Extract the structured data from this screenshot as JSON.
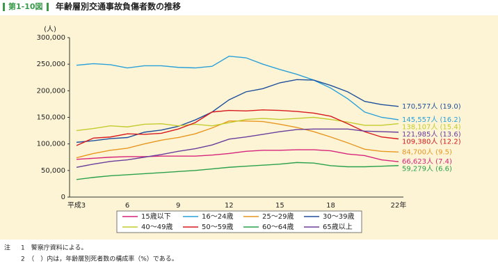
{
  "header": {
    "figure_no": "第1-10図",
    "title": "年齢層別交通事故負傷者数の推移"
  },
  "chart_data": {
    "type": "line",
    "y_unit": "(人)",
    "categories": [
      "平成3",
      null,
      null,
      "6",
      null,
      null,
      "9",
      null,
      null,
      "12",
      null,
      null,
      "15",
      null,
      null,
      "18",
      null,
      null,
      null,
      "22年"
    ],
    "ylim": [
      0,
      300000
    ],
    "yticks": [
      0,
      {
        "value": 50000,
        "label": "50,000"
      },
      {
        "value": 100000,
        "label": "100,000"
      },
      {
        "value": 150000,
        "label": "150,000"
      },
      {
        "value": 200000,
        "label": "200,000"
      },
      {
        "value": 250000,
        "label": "250,000"
      },
      {
        "value": 300000,
        "label": "300,000"
      }
    ],
    "grid": false,
    "series": [
      {
        "name": "15歳以下",
        "color": "#d6247a",
        "values": [
          71000,
          73000,
          75000,
          76000,
          76000,
          77000,
          77000,
          77000,
          79000,
          82000,
          86000,
          88000,
          88000,
          89000,
          89000,
          87000,
          81000,
          78000,
          70000,
          66623
        ],
        "value_labels": [
          null,
          null,
          null,
          null,
          null,
          null,
          null,
          null,
          null,
          null,
          null,
          null,
          null,
          null,
          null,
          null,
          null,
          null,
          null,
          "66,623人 (7.4)"
        ]
      },
      {
        "name": "16～24歳",
        "color": "#2aa0d8",
        "values": [
          248000,
          251000,
          249000,
          243000,
          247000,
          247000,
          244000,
          243000,
          246000,
          265000,
          262000,
          250000,
          240000,
          231000,
          220000,
          205000,
          185000,
          160000,
          150000,
          145557
        ],
        "value_labels": [
          null,
          null,
          null,
          null,
          null,
          null,
          null,
          null,
          null,
          null,
          null,
          null,
          null,
          null,
          null,
          null,
          null,
          null,
          null,
          "145,557人 (16.2)"
        ]
      },
      {
        "name": "25～29歳",
        "color": "#e8961e",
        "values": [
          74000,
          82000,
          88000,
          92000,
          100000,
          107000,
          112000,
          119000,
          130000,
          143000,
          143000,
          142000,
          137000,
          131000,
          123000,
          113000,
          102000,
          90000,
          86000,
          84700
        ],
        "value_labels": [
          null,
          null,
          null,
          null,
          null,
          null,
          null,
          null,
          null,
          null,
          null,
          null,
          null,
          null,
          null,
          null,
          null,
          null,
          null,
          "84,700人 (9.5)"
        ]
      },
      {
        "name": "30～39歳",
        "color": "#1e4f9c",
        "values": [
          103000,
          106000,
          110000,
          112000,
          122000,
          126000,
          133000,
          145000,
          160000,
          183000,
          198000,
          204000,
          215000,
          221000,
          220000,
          210000,
          198000,
          180000,
          174000,
          170577
        ],
        "value_labels": [
          null,
          null,
          null,
          null,
          null,
          null,
          null,
          null,
          null,
          null,
          null,
          null,
          null,
          null,
          null,
          null,
          null,
          null,
          null,
          "170,577人 (19.0)"
        ]
      },
      {
        "name": "40～49歳",
        "color": "#c3cc2e",
        "values": [
          125000,
          129000,
          134000,
          132000,
          137000,
          138000,
          134000,
          137000,
          134000,
          140000,
          146000,
          148000,
          146000,
          148000,
          150000,
          146000,
          141000,
          135000,
          135000,
          138107
        ],
        "value_labels": [
          null,
          null,
          null,
          null,
          null,
          null,
          null,
          null,
          null,
          null,
          null,
          null,
          null,
          null,
          null,
          null,
          null,
          null,
          null,
          "138,107人 (15.4)"
        ]
      },
      {
        "name": "50～59歳",
        "color": "#d7191c",
        "values": [
          97000,
          111000,
          113000,
          119000,
          118000,
          120000,
          128000,
          140000,
          160000,
          163000,
          162000,
          164000,
          163000,
          161000,
          158000,
          152000,
          138000,
          123000,
          113000,
          109380
        ],
        "value_labels": [
          null,
          null,
          null,
          null,
          null,
          null,
          null,
          null,
          null,
          null,
          null,
          null,
          null,
          null,
          null,
          null,
          null,
          null,
          null,
          "109,380人 (12.2)"
        ]
      },
      {
        "name": "60～64歳",
        "color": "#2aa04a",
        "values": [
          33000,
          37000,
          40000,
          42000,
          44000,
          46000,
          48000,
          50000,
          53000,
          56000,
          58000,
          60000,
          62000,
          65000,
          64000,
          59000,
          57000,
          57000,
          58000,
          59279
        ],
        "value_labels": [
          null,
          null,
          null,
          null,
          null,
          null,
          null,
          null,
          null,
          null,
          null,
          null,
          null,
          null,
          null,
          null,
          null,
          null,
          null,
          "59,279人 (6.6)"
        ]
      },
      {
        "name": "65歳以上",
        "color": "#6a3d9a",
        "values": [
          56000,
          62000,
          67000,
          70000,
          75000,
          80000,
          86000,
          91000,
          98000,
          109000,
          113000,
          118000,
          123000,
          127000,
          128000,
          128000,
          128000,
          124000,
          123000,
          121985
        ],
        "value_labels": [
          null,
          null,
          null,
          null,
          null,
          null,
          null,
          null,
          null,
          null,
          null,
          null,
          null,
          null,
          null,
          null,
          null,
          null,
          null,
          "121,985人 (13.6)"
        ]
      }
    ]
  },
  "notes": [
    "注",
    "1　警察庁資料による。",
    "2　（　）内は，年齢層別死者数の構成率（%）である。"
  ]
}
